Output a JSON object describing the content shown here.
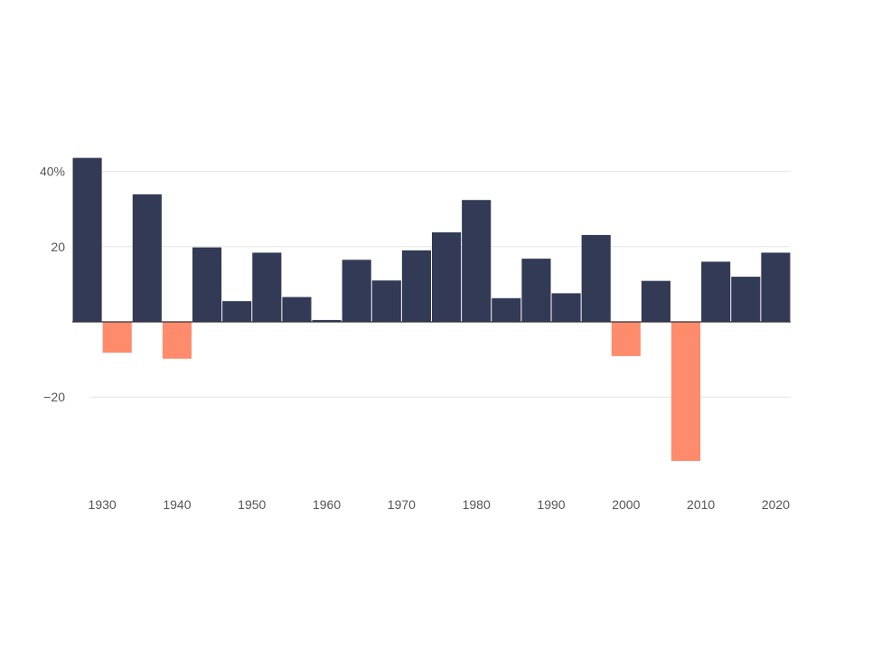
{
  "chart_data": {
    "type": "bar",
    "title": "",
    "xlabel": "",
    "ylabel": "",
    "x": [
      1928,
      1932,
      1936,
      1940,
      1944,
      1948,
      1952,
      1956,
      1960,
      1964,
      1968,
      1972,
      1976,
      1980,
      1984,
      1988,
      1992,
      1996,
      2000,
      2004,
      2008,
      2012,
      2016,
      2020
    ],
    "values": [
      43.6,
      -8.2,
      33.9,
      -9.8,
      19.8,
      5.5,
      18.4,
      6.6,
      0.5,
      16.5,
      11.0,
      19.0,
      23.8,
      32.4,
      6.3,
      16.8,
      7.6,
      23.1,
      -9.1,
      10.9,
      -37.0,
      16.0,
      12.0,
      18.4
    ],
    "ylim": [
      -45,
      52
    ],
    "y_ticks": [
      -20,
      20,
      40
    ],
    "y_tick_labels": [
      "−20",
      "20",
      "40%"
    ],
    "x_ticks": [
      1930,
      1940,
      1950,
      1960,
      1970,
      1980,
      1990,
      2000,
      2010,
      2020
    ],
    "x_tick_labels": [
      "1930",
      "1940",
      "1950",
      "1960",
      "1970",
      "1980",
      "1990",
      "2000",
      "2010",
      "2020"
    ],
    "grid": true,
    "legend": "none",
    "colors": {
      "positive": "#323a56",
      "negative": "#fe8b6c"
    }
  }
}
